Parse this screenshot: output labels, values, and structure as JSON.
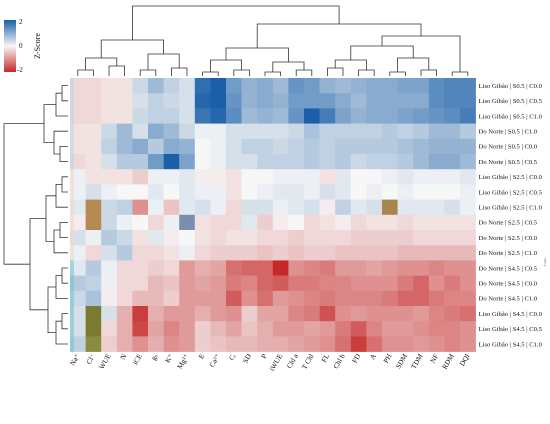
{
  "chart_data": {
    "type": "heatmap",
    "title": "",
    "xlabel": "",
    "ylabel": "",
    "colorbar": {
      "title": "Z-Score",
      "ticks": [
        "2",
        "0",
        "-2"
      ],
      "range": [
        -2,
        2
      ],
      "low_color": "#c62828",
      "mid_color": "#f7f7f7",
      "high_color": "#1a5fa8"
    },
    "right_axis_label": "Label",
    "columns": [
      "Na⁺",
      "Cl⁻",
      "WUE",
      "N",
      "iCE",
      "gₛ",
      "K⁺",
      "Mg²⁺",
      "E",
      "Ca²⁺",
      "Cᵢ",
      "SD",
      "P",
      "iWUE",
      "Chl a",
      "T Chl",
      "FL",
      "Chl b",
      "FD",
      "A",
      "PH",
      "SDM",
      "TDM",
      "NF",
      "RDM",
      "DQI"
    ],
    "rows": [
      "Liso Gibão | S0.5 | C0.0",
      "Liso Gibão | S0.5 | C0.5",
      "Liso Gibão | S0.5 | C1.0",
      "Do Norte | S0.5 | C1.0",
      "Do Norte | S0.5 | C0.0",
      "Do Norte | S0.5 | C0.5",
      "Liso Gibão | S2.5 | C0.0",
      "Liso Gibão | S2.5 | C0.5",
      "Liso Gibão | S2.5 | C1.0",
      "Do Norte | S2.5 | C0.5",
      "Do Norte | S2.5 | C0.0",
      "Do Norte | S2.5 | C1.0",
      "Do Norte | S4.5 | C0.5",
      "Do Norte | S4.5 | C0.0",
      "Do Norte | S4.5 | C1.0",
      "Liso Gibão | S4.5 | C0.0",
      "Liso Gibão | S4.5 | C0.5",
      "Liso Gibão | S4.5 | C1.0"
    ],
    "values": [
      [
        -0.3,
        -0.3,
        -0.2,
        -0.2,
        0.4,
        0.8,
        0.5,
        0.3,
        1.8,
        2.2,
        1.2,
        0.9,
        1.0,
        0.8,
        1.3,
        1.2,
        0.9,
        0.8,
        0.9,
        1.0,
        1.0,
        1.1,
        1.1,
        1.4,
        1.5,
        1.5
      ],
      [
        -0.3,
        -0.3,
        -0.2,
        -0.2,
        0.3,
        0.5,
        0.4,
        0.3,
        1.9,
        2.3,
        1.3,
        0.9,
        1.0,
        0.9,
        1.2,
        1.2,
        1.2,
        1.0,
        0.8,
        1.0,
        1.0,
        1.0,
        1.0,
        1.4,
        1.5,
        1.5
      ],
      [
        -0.3,
        -0.3,
        -0.2,
        -0.2,
        0.4,
        0.5,
        0.5,
        0.3,
        1.7,
        1.9,
        1.4,
        0.8,
        0.9,
        0.8,
        1.3,
        2.1,
        1.6,
        1.1,
        0.9,
        1.0,
        1.0,
        1.1,
        1.2,
        1.3,
        1.4,
        1.6
      ],
      [
        -0.2,
        -0.2,
        0.4,
        0.8,
        0.3,
        1.0,
        0.8,
        0.4,
        0.1,
        0.1,
        0.3,
        0.3,
        0.3,
        0.3,
        0.4,
        0.7,
        0.5,
        0.5,
        0.5,
        0.5,
        0.6,
        0.5,
        0.6,
        0.8,
        0.8,
        0.6
      ],
      [
        -0.2,
        -0.2,
        0.5,
        0.8,
        1.0,
        0.6,
        1.0,
        0.9,
        0.0,
        0.1,
        0.3,
        0.5,
        0.5,
        0.4,
        0.5,
        0.6,
        0.5,
        0.6,
        0.6,
        0.6,
        0.6,
        0.7,
        0.8,
        0.9,
        0.9,
        0.9
      ],
      [
        -0.3,
        -0.2,
        0.3,
        0.6,
        0.6,
        1.2,
        2.3,
        1.1,
        0.0,
        0.1,
        0.3,
        0.3,
        0.5,
        0.5,
        0.5,
        0.6,
        0.5,
        0.6,
        0.4,
        0.5,
        0.5,
        0.6,
        0.8,
        1.0,
        1.0,
        0.8
      ],
      [
        0.1,
        -0.2,
        -0.2,
        -0.2,
        -0.4,
        0.1,
        0.1,
        0.2,
        -0.1,
        -0.1,
        -0.2,
        0.0,
        0.0,
        0.1,
        0.1,
        0.1,
        -0.2,
        0.2,
        0.0,
        0.0,
        0.1,
        0.2,
        0.1,
        0.1,
        0.1,
        0.2
      ],
      [
        0.1,
        0.3,
        0.1,
        0.0,
        0.0,
        0.2,
        0.0,
        0.2,
        0.1,
        0.1,
        -0.2,
        0.0,
        0.1,
        0.2,
        0.2,
        0.1,
        0.3,
        0.2,
        0.0,
        0.1,
        0.0,
        0.1,
        0.0,
        0.0,
        0.0,
        0.1
      ],
      [
        0.2,
        -0.3,
        0.4,
        0.5,
        -1.0,
        0.1,
        -0.5,
        0.2,
        0.3,
        0.1,
        -0.3,
        0.3,
        0.3,
        0.1,
        0.2,
        0.3,
        -0.1,
        0.5,
        0.2,
        0.3,
        -1.2,
        0.2,
        0.2,
        0.2,
        0.3,
        0.1
      ],
      [
        -0.1,
        -0.4,
        0.4,
        0.1,
        0.0,
        -0.3,
        0.1,
        0.7,
        -0.2,
        -0.3,
        -0.3,
        0.2,
        -0.4,
        -0.1,
        0.0,
        -0.3,
        -0.2,
        -0.1,
        -0.3,
        -0.2,
        -0.2,
        -0.3,
        -0.2,
        -0.2,
        -0.2,
        -0.2
      ],
      [
        0.3,
        0.1,
        0.6,
        0.4,
        -0.2,
        0.2,
        -0.1,
        0.0,
        -0.2,
        -0.3,
        -0.2,
        -0.2,
        -0.3,
        -0.3,
        -0.4,
        -0.3,
        -0.3,
        -0.3,
        -0.4,
        -0.4,
        -0.4,
        -0.4,
        -0.3,
        -0.3,
        -0.3,
        -0.3
      ],
      [
        0.1,
        -0.3,
        0.3,
        0.6,
        -0.3,
        -0.3,
        -0.2,
        0.1,
        -0.3,
        -0.4,
        -0.4,
        -0.4,
        -0.5,
        -0.4,
        -0.5,
        -0.4,
        -0.4,
        -0.5,
        -0.5,
        -0.5,
        -0.5,
        -0.6,
        -0.6,
        -0.6,
        -0.6,
        -0.6
      ],
      [
        0.2,
        0.6,
        0.1,
        -0.3,
        -0.3,
        -0.4,
        -0.3,
        -0.9,
        -0.7,
        -0.8,
        -1.3,
        -1.4,
        -1.4,
        -2.2,
        -1.0,
        -1.1,
        -1.2,
        -0.9,
        -0.9,
        -0.8,
        -0.9,
        -1.0,
        -1.0,
        -1.1,
        -1.0,
        -1.0
      ],
      [
        0.6,
        0.5,
        0.1,
        -0.3,
        -0.3,
        -0.6,
        -0.5,
        -0.9,
        -0.8,
        -0.9,
        -1.2,
        -1.1,
        -1.4,
        -1.5,
        -1.2,
        -1.2,
        -1.1,
        -1.1,
        -1.0,
        -1.0,
        -1.0,
        -1.2,
        -1.4,
        -1.0,
        -1.2,
        -1.0
      ],
      [
        0.4,
        0.7,
        -0.1,
        -0.3,
        -0.6,
        -0.6,
        -0.4,
        -0.9,
        -0.9,
        -0.9,
        -1.5,
        -1.0,
        -1.3,
        -0.9,
        -1.0,
        -1.1,
        -1.2,
        -1.1,
        -1.1,
        -1.1,
        -1.2,
        -1.4,
        -1.4,
        -1.2,
        -1.1,
        -1.1
      ],
      [
        0.3,
        1.0,
        0.3,
        -0.7,
        -1.8,
        -0.7,
        -0.9,
        -0.9,
        -0.7,
        -0.9,
        -1.0,
        -0.4,
        -0.8,
        -0.8,
        -1.1,
        -1.2,
        -1.6,
        -1.0,
        -0.9,
        -1.0,
        -1.0,
        -1.0,
        -0.9,
        -1.1,
        -1.2,
        -1.3
      ],
      [
        0.3,
        1.1,
        -0.3,
        -0.7,
        -1.7,
        -0.8,
        -1.1,
        -0.9,
        -0.4,
        -0.6,
        -0.8,
        -0.5,
        -0.7,
        -0.9,
        -0.9,
        -0.8,
        -0.9,
        -1.2,
        -1.5,
        -1.1,
        -0.9,
        -0.9,
        -1.0,
        -1.1,
        -1.1,
        -1.0
      ],
      [
        0.5,
        1.0,
        -0.4,
        -0.7,
        -1.0,
        -0.7,
        -1.0,
        -0.9,
        -0.4,
        -0.5,
        -0.6,
        -0.6,
        -0.7,
        -0.7,
        -0.8,
        -0.9,
        -1.0,
        -1.3,
        -1.8,
        -1.3,
        -1.0,
        -1.0,
        -0.9,
        -1.0,
        -1.1,
        -1.0
      ]
    ],
    "annotation_colors": {
      "row_groups": [
        "#bcd3ea",
        "#f2d5c9",
        "#6fc3c9"
      ],
      "accent_cells": [
        {
          "row": 8,
          "col": 1,
          "color": "#b48a52"
        },
        {
          "row": 8,
          "col": 20,
          "color": "#a8884a"
        },
        {
          "row": 9,
          "col": 1,
          "color": "#b48a52"
        },
        {
          "row": 9,
          "col": 7,
          "color": "#7a8fb0"
        },
        {
          "row": 15,
          "col": 1,
          "color": "#7a7a30"
        },
        {
          "row": 16,
          "col": 1,
          "color": "#7a7a30"
        },
        {
          "row": 17,
          "col": 1,
          "color": "#8a8a40"
        }
      ]
    }
  }
}
